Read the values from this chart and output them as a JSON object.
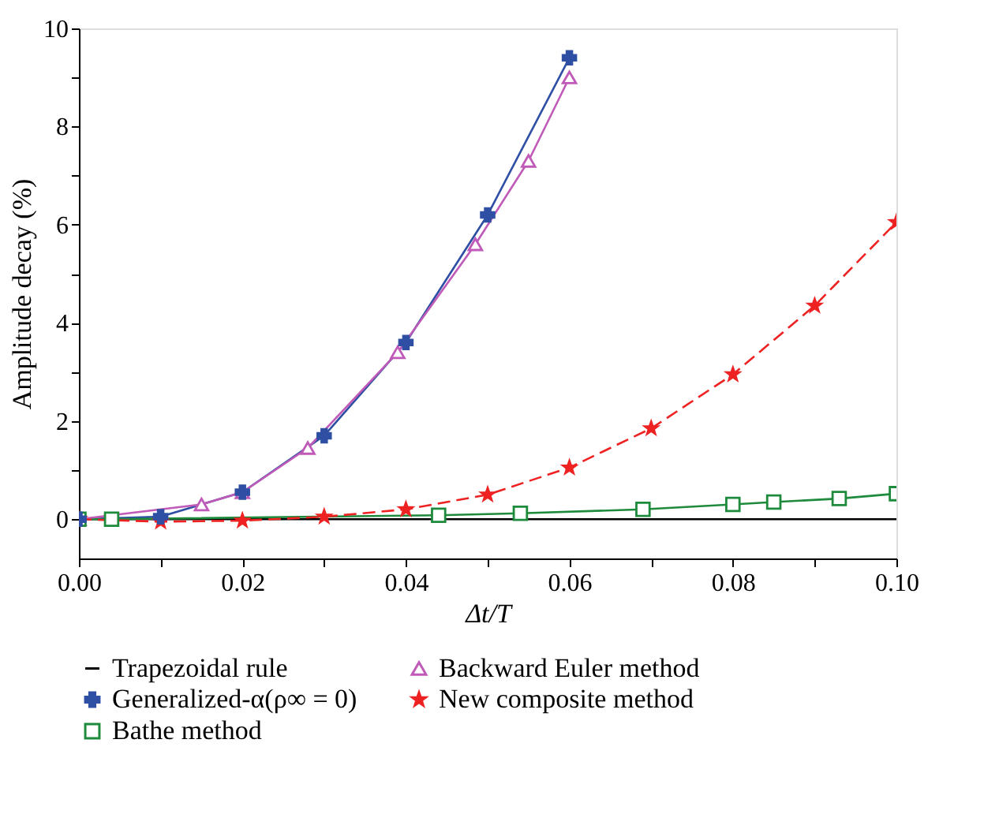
{
  "chart_data": {
    "type": "line",
    "xlabel": "Δt/T",
    "ylabel": "Amplitude decay (%)",
    "grid": false,
    "legend": "bottom",
    "xlim": [
      0,
      0.1
    ],
    "ylim": [
      -0.8,
      10
    ],
    "xticks": [
      {
        "value": 0,
        "label": "0.00"
      },
      {
        "value": 0.01,
        "label": null
      },
      {
        "value": 0.02,
        "label": "0.02"
      },
      {
        "value": 0.03,
        "label": null
      },
      {
        "value": 0.04,
        "label": "0.04"
      },
      {
        "value": 0.05,
        "label": null
      },
      {
        "value": 0.06,
        "label": "0.06"
      },
      {
        "value": 0.07,
        "label": null
      },
      {
        "value": 0.08,
        "label": "0.08"
      },
      {
        "value": 0.09,
        "label": null
      },
      {
        "value": 0.1,
        "label": "0.10"
      }
    ],
    "yticks": [
      0,
      {
        "value": 1,
        "label": null
      },
      2,
      {
        "value": 3,
        "label": null
      },
      4,
      {
        "value": 5,
        "label": null
      },
      6,
      {
        "value": 7,
        "label": null
      },
      8,
      {
        "value": 9,
        "label": null
      },
      10
    ],
    "series": [
      {
        "name": "Trapezoidal rule",
        "color": "#000000",
        "marker": "none",
        "line_style": "solid",
        "x": [
          0,
          0.1
        ],
        "values": [
          0,
          0
        ]
      },
      {
        "name": "Generalized-α(ρ∞ = 0)",
        "color": "#2e4fa3",
        "marker": "cross",
        "line_style": "solid",
        "x": [
          0,
          0.01,
          0.02,
          0.03,
          0.04,
          0.05,
          0.06
        ],
        "values": [
          0,
          0.05,
          0.55,
          1.7,
          3.6,
          6.2,
          9.4
        ]
      },
      {
        "name": "Bathe method",
        "color": "#1e8a3c",
        "marker": "square",
        "line_style": "solid",
        "x": [
          0,
          0.004,
          0.044,
          0.054,
          0.069,
          0.08,
          0.085,
          0.093,
          0.1
        ],
        "values": [
          0,
          0,
          0.08,
          0.12,
          0.2,
          0.3,
          0.35,
          0.42,
          0.52
        ]
      },
      {
        "name": "Backward Euler method",
        "color": "#c05ab8",
        "marker": "triangle",
        "line_style": "solid",
        "x": [
          0,
          0.015,
          0.02,
          0.028,
          0.039,
          0.0485,
          0.055,
          0.06
        ],
        "values": [
          0,
          0.3,
          0.55,
          1.45,
          3.4,
          5.6,
          7.3,
          9.0
        ]
      },
      {
        "name": "New composite method",
        "color": "#ee2222",
        "marker": "star",
        "line_style": "dashed",
        "x": [
          0,
          0.01,
          0.02,
          0.03,
          0.04,
          0.05,
          0.06,
          0.07,
          0.08,
          0.09,
          0.1
        ],
        "values": [
          0,
          -0.05,
          -0.03,
          0.05,
          0.2,
          0.5,
          1.05,
          1.85,
          2.95,
          4.35,
          6.05
        ]
      }
    ]
  }
}
